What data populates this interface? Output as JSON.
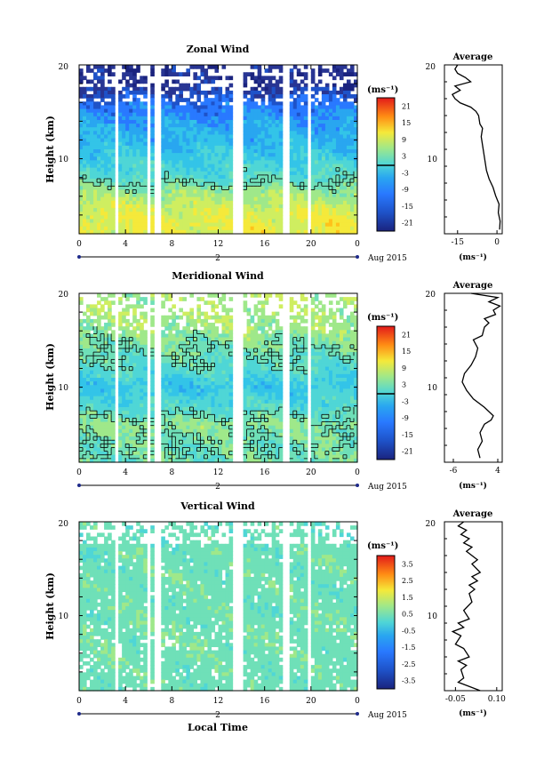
{
  "figure": {
    "xlabel": "Local Time",
    "date_label": "Aug 2015",
    "date_marker": "2",
    "profile_title": "Average",
    "unit": "(ms⁻¹)"
  },
  "chart_data": [
    {
      "type": "heatmap",
      "title": "Zonal Wind",
      "ylabel": "Height (km)",
      "xlim": [
        0,
        24
      ],
      "x_ticks": [
        "0",
        "4",
        "8",
        "12",
        "16",
        "20",
        "0"
      ],
      "ylim": [
        2,
        20
      ],
      "y_ticks": [
        "10",
        "20"
      ],
      "colorbar": {
        "label": "(ms⁻¹)",
        "range": [
          -24,
          24
        ],
        "ticks": [
          "21",
          "15",
          "9",
          "3",
          "-3",
          "-9",
          "-15",
          "-21"
        ],
        "contour_level": 0
      },
      "data_gaps_hours": [
        [
          3.0,
          3.4
        ],
        [
          5.8,
          6.2
        ],
        [
          6.6,
          7.0
        ],
        [
          13.3,
          14.1
        ],
        [
          17.6,
          18.3
        ],
        [
          19.6,
          20.0
        ]
      ],
      "field_summary": [
        {
          "height_km": 4,
          "typical_value": 8
        },
        {
          "height_km": 6,
          "typical_value": 4
        },
        {
          "height_km": 8,
          "typical_value": -2
        },
        {
          "height_km": 10,
          "typical_value": -5
        },
        {
          "height_km": 12,
          "typical_value": -8
        },
        {
          "height_km": 14,
          "typical_value": -10
        },
        {
          "height_km": 16,
          "typical_value": -14
        },
        {
          "height_km": 18,
          "typical_value": -20
        }
      ],
      "profile": {
        "title": "Average",
        "xlabel": "(ms⁻¹)",
        "xlim": [
          -20,
          2
        ],
        "x_ticks": [
          -15,
          0
        ],
        "x_tick_labels": [
          "-15",
          "0"
        ],
        "ylim": [
          0,
          20
        ],
        "y_ticks": [
          "10",
          "20"
        ],
        "points": [
          {
            "x": 1.0,
            "y": 0.5
          },
          {
            "x": 1.2,
            "y": 1.5
          },
          {
            "x": 0.5,
            "y": 2.5
          },
          {
            "x": 0.8,
            "y": 3.5
          },
          {
            "x": -0.5,
            "y": 4.5
          },
          {
            "x": -1.5,
            "y": 5.5
          },
          {
            "x": -3.0,
            "y": 6.5
          },
          {
            "x": -4.0,
            "y": 7.5
          },
          {
            "x": -4.5,
            "y": 8.5
          },
          {
            "x": -5.0,
            "y": 9.5
          },
          {
            "x": -5.5,
            "y": 10.5
          },
          {
            "x": -6.0,
            "y": 11.5
          },
          {
            "x": -5.5,
            "y": 12.5
          },
          {
            "x": -6.5,
            "y": 13.0
          },
          {
            "x": -7.0,
            "y": 14.0
          },
          {
            "x": -8.0,
            "y": 14.5
          },
          {
            "x": -10.0,
            "y": 15.0
          },
          {
            "x": -14.0,
            "y": 15.5
          },
          {
            "x": -16.0,
            "y": 16.0
          },
          {
            "x": -17.0,
            "y": 16.5
          },
          {
            "x": -14.0,
            "y": 17.0
          },
          {
            "x": -16.0,
            "y": 17.5
          },
          {
            "x": -10.0,
            "y": 18.0
          },
          {
            "x": -12.0,
            "y": 18.5
          },
          {
            "x": -15.0,
            "y": 19.0
          },
          {
            "x": -16.0,
            "y": 19.5
          },
          {
            "x": -15.0,
            "y": 20.0
          }
        ]
      }
    },
    {
      "type": "heatmap",
      "title": "Meridional Wind",
      "ylabel": "Height (km)",
      "xlim": [
        0,
        24
      ],
      "x_ticks": [
        "0",
        "4",
        "8",
        "12",
        "16",
        "20",
        "0"
      ],
      "ylim": [
        2,
        20
      ],
      "y_ticks": [
        "10",
        "20"
      ],
      "colorbar": {
        "label": "(ms⁻¹)",
        "range": [
          -24,
          24
        ],
        "ticks": [
          "21",
          "15",
          "9",
          "3",
          "-3",
          "-9",
          "-15",
          "-21"
        ],
        "contour_level": 0
      },
      "data_gaps_hours": [
        [
          3.0,
          3.4
        ],
        [
          5.8,
          6.2
        ],
        [
          6.6,
          7.0
        ],
        [
          13.3,
          14.1
        ],
        [
          17.6,
          18.3
        ],
        [
          19.6,
          20.0
        ]
      ],
      "field_summary": [
        {
          "height_km": 4,
          "typical_value": 0
        },
        {
          "height_km": 6,
          "typical_value": 2
        },
        {
          "height_km": 8,
          "typical_value": -3
        },
        {
          "height_km": 10,
          "typical_value": -6
        },
        {
          "height_km": 12,
          "typical_value": -2
        },
        {
          "height_km": 14,
          "typical_value": 0
        },
        {
          "height_km": 16,
          "typical_value": 3
        },
        {
          "height_km": 18,
          "typical_value": 4
        }
      ],
      "profile": {
        "title": "Average",
        "xlabel": "(ms⁻¹)",
        "xlim": [
          -8,
          5
        ],
        "x_ticks": [
          -6,
          4
        ],
        "x_tick_labels": [
          "-6",
          "4"
        ],
        "ylim": [
          0,
          20
        ],
        "y_ticks": [
          "10",
          "20"
        ],
        "points": [
          {
            "x": 0.0,
            "y": 0.5
          },
          {
            "x": -0.5,
            "y": 1.5
          },
          {
            "x": 0.5,
            "y": 2.5
          },
          {
            "x": 0.0,
            "y": 3.5
          },
          {
            "x": 1.0,
            "y": 4.5
          },
          {
            "x": 2.5,
            "y": 5.0
          },
          {
            "x": 3.0,
            "y": 5.5
          },
          {
            "x": 1.0,
            "y": 6.5
          },
          {
            "x": -1.5,
            "y": 7.5
          },
          {
            "x": -3.0,
            "y": 8.5
          },
          {
            "x": -4.0,
            "y": 9.5
          },
          {
            "x": -3.5,
            "y": 10.5
          },
          {
            "x": -2.0,
            "y": 11.5
          },
          {
            "x": -1.0,
            "y": 12.5
          },
          {
            "x": -0.5,
            "y": 13.5
          },
          {
            "x": -1.5,
            "y": 14.5
          },
          {
            "x": 0.5,
            "y": 15.0
          },
          {
            "x": 1.0,
            "y": 16.0
          },
          {
            "x": 2.0,
            "y": 16.5
          },
          {
            "x": 1.0,
            "y": 17.0
          },
          {
            "x": 3.5,
            "y": 17.5
          },
          {
            "x": 3.0,
            "y": 18.0
          },
          {
            "x": 4.5,
            "y": 18.5
          },
          {
            "x": 2.0,
            "y": 19.0
          },
          {
            "x": 4.0,
            "y": 19.5
          },
          {
            "x": -2.0,
            "y": 20.0
          }
        ]
      }
    },
    {
      "type": "heatmap",
      "title": "Vertical Wind",
      "ylabel": "Height (km)",
      "xlim": [
        0,
        24
      ],
      "x_ticks": [
        "0",
        "4",
        "8",
        "12",
        "16",
        "20",
        "0"
      ],
      "ylim": [
        2,
        20
      ],
      "y_ticks": [
        "10",
        "20"
      ],
      "colorbar": {
        "label": "(ms⁻¹)",
        "range": [
          -4,
          4
        ],
        "ticks": [
          "3.5",
          "2.5",
          "1.5",
          "0.5",
          "-0.5",
          "-1.5",
          "-2.5",
          "-3.5"
        ],
        "contour_level": null
      },
      "data_gaps_hours": [
        [
          3.0,
          3.4
        ],
        [
          5.8,
          6.2
        ],
        [
          6.6,
          7.0
        ],
        [
          13.3,
          14.1
        ],
        [
          17.6,
          18.3
        ],
        [
          19.6,
          20.0
        ]
      ],
      "field_summary": [
        {
          "height_km": 4,
          "typical_value": 0.0
        },
        {
          "height_km": 8,
          "typical_value": 0.1
        },
        {
          "height_km": 12,
          "typical_value": 0.0
        },
        {
          "height_km": 16,
          "typical_value": 0.05
        },
        {
          "height_km": 18,
          "typical_value": -0.1
        }
      ],
      "profile": {
        "title": "Average",
        "xlabel": "(ms⁻¹)",
        "xlim": [
          -0.09,
          0.12
        ],
        "x_ticks": [
          -0.05,
          0.1
        ],
        "x_tick_labels": [
          "-0.05",
          "0.10"
        ],
        "ylim": [
          0,
          20
        ],
        "y_ticks": [
          "10",
          "20"
        ],
        "points": [
          {
            "x": 0.04,
            "y": 0.0
          },
          {
            "x": 0.0,
            "y": 0.5
          },
          {
            "x": -0.04,
            "y": 1.0
          },
          {
            "x": -0.02,
            "y": 1.5
          },
          {
            "x": -0.03,
            "y": 2.5
          },
          {
            "x": -0.01,
            "y": 3.0
          },
          {
            "x": -0.04,
            "y": 3.5
          },
          {
            "x": 0.0,
            "y": 4.0
          },
          {
            "x": -0.02,
            "y": 5.0
          },
          {
            "x": -0.05,
            "y": 5.5
          },
          {
            "x": -0.03,
            "y": 6.5
          },
          {
            "x": -0.06,
            "y": 7.0
          },
          {
            "x": -0.02,
            "y": 7.5
          },
          {
            "x": -0.04,
            "y": 8.0
          },
          {
            "x": 0.0,
            "y": 8.5
          },
          {
            "x": -0.02,
            "y": 9.5
          },
          {
            "x": 0.01,
            "y": 10.5
          },
          {
            "x": 0.0,
            "y": 11.5
          },
          {
            "x": 0.02,
            "y": 12.0
          },
          {
            "x": 0.0,
            "y": 12.5
          },
          {
            "x": 0.03,
            "y": 13.0
          },
          {
            "x": 0.01,
            "y": 13.5
          },
          {
            "x": 0.04,
            "y": 14.0
          },
          {
            "x": 0.01,
            "y": 15.0
          },
          {
            "x": 0.03,
            "y": 15.5
          },
          {
            "x": -0.01,
            "y": 16.5
          },
          {
            "x": 0.01,
            "y": 17.0
          },
          {
            "x": -0.02,
            "y": 17.5
          },
          {
            "x": 0.0,
            "y": 18.0
          },
          {
            "x": -0.03,
            "y": 18.5
          },
          {
            "x": -0.01,
            "y": 19.0
          },
          {
            "x": -0.04,
            "y": 19.5
          },
          {
            "x": -0.02,
            "y": 20.0
          }
        ]
      }
    }
  ],
  "colors": {
    "scale": [
      "#1a237e",
      "#283593",
      "#1e52c8",
      "#2979ff",
      "#29a6f0",
      "#33c4e8",
      "#4fd6d6",
      "#6fe0b8",
      "#9fe88a",
      "#cfee60",
      "#f5e93a",
      "#ffc21a",
      "#ff8c14",
      "#ff4a14",
      "#e21a1a"
    ],
    "contour": "#000000",
    "gap": "#ffffff"
  }
}
